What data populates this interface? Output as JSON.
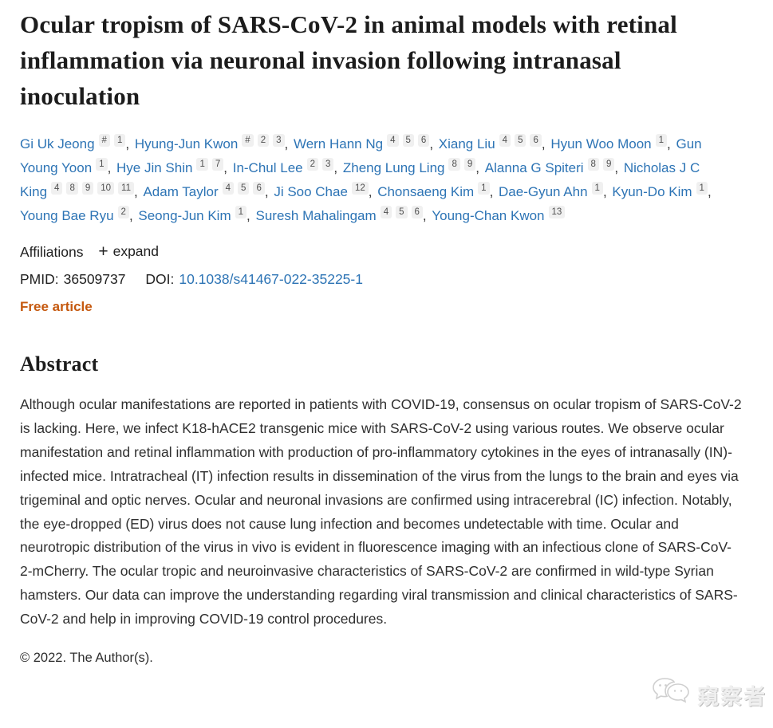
{
  "article": {
    "title": "Ocular tropism of SARS-CoV-2 in animal models with retinal inflammation via neuronal invasion following intranasal inoculation"
  },
  "authors": [
    {
      "name": "Gi Uk Jeong",
      "sups": [
        "#",
        "1"
      ]
    },
    {
      "name": "Hyung-Jun Kwon",
      "sups": [
        "#",
        "2",
        "3"
      ]
    },
    {
      "name": "Wern Hann Ng",
      "sups": [
        "4",
        "5",
        "6"
      ]
    },
    {
      "name": "Xiang Liu",
      "sups": [
        "4",
        "5",
        "6"
      ]
    },
    {
      "name": "Hyun Woo Moon",
      "sups": [
        "1"
      ]
    },
    {
      "name": "Gun Young Yoon",
      "sups": [
        "1"
      ]
    },
    {
      "name": "Hye Jin Shin",
      "sups": [
        "1",
        "7"
      ]
    },
    {
      "name": "In-Chul Lee",
      "sups": [
        "2",
        "3"
      ]
    },
    {
      "name": "Zheng Lung Ling",
      "sups": [
        "8",
        "9"
      ]
    },
    {
      "name": "Alanna G Spiteri",
      "sups": [
        "8",
        "9"
      ]
    },
    {
      "name": "Nicholas J C King",
      "sups": [
        "4",
        "8",
        "9",
        "10",
        "11"
      ]
    },
    {
      "name": "Adam Taylor",
      "sups": [
        "4",
        "5",
        "6"
      ]
    },
    {
      "name": "Ji Soo Chae",
      "sups": [
        "12"
      ]
    },
    {
      "name": "Chonsaeng Kim",
      "sups": [
        "1"
      ]
    },
    {
      "name": "Dae-Gyun Ahn",
      "sups": [
        "1"
      ]
    },
    {
      "name": "Kyun-Do Kim",
      "sups": [
        "1"
      ]
    },
    {
      "name": "Young Bae Ryu",
      "sups": [
        "2"
      ]
    },
    {
      "name": "Seong-Jun Kim",
      "sups": [
        "1"
      ]
    },
    {
      "name": "Suresh Mahalingam",
      "sups": [
        "4",
        "5",
        "6"
      ]
    },
    {
      "name": "Young-Chan Kwon",
      "sups": [
        "13"
      ]
    }
  ],
  "meta": {
    "affiliations_label": "Affiliations",
    "expand_icon": "+",
    "expand_label": "expand",
    "pmid_label": "PMID:",
    "pmid_value": "36509737",
    "doi_label": "DOI:",
    "doi_value": "10.1038/s41467-022-35225-1",
    "free_article_label": "Free article"
  },
  "abstract": {
    "heading": "Abstract",
    "text": "Although ocular manifestations are reported in patients with COVID-19, consensus on ocular tropism of SARS-CoV-2 is lacking. Here, we infect K18-hACE2 transgenic mice with SARS-CoV-2 using various routes. We observe ocular manifestation and retinal inflammation with production of pro-inflammatory cytokines in the eyes of intranasally (IN)-infected mice. Intratracheal (IT) infection results in dissemination of the virus from the lungs to the brain and eyes via trigeminal and optic nerves. Ocular and neuronal invasions are confirmed using intracerebral (IC) infection. Notably, the eye-dropped (ED) virus does not cause lung infection and becomes undetectable with time. Ocular and neurotropic distribution of the virus in vivo is evident in fluorescence imaging with an infectious clone of SARS-CoV-2-mCherry. The ocular tropic and neuroinvasive characteristics of SARS-CoV-2 are confirmed in wild-type Syrian hamsters. Our data can improve the understanding regarding viral transmission and clinical characteristics of SARS-CoV-2 and help in improving COVID-19 control procedures."
  },
  "footer": {
    "copyright": "© 2022. The Author(s)."
  },
  "watermark": {
    "text": "窺察者",
    "icon": "chat-bubbles-icon"
  },
  "colors": {
    "link_blue": "#2d74b5",
    "free_article_orange": "#c5590f",
    "sup_chip_bg": "#f0f0f0",
    "text_dark": "#2f2f2f",
    "watermark_gray": "#d9d9d9"
  }
}
